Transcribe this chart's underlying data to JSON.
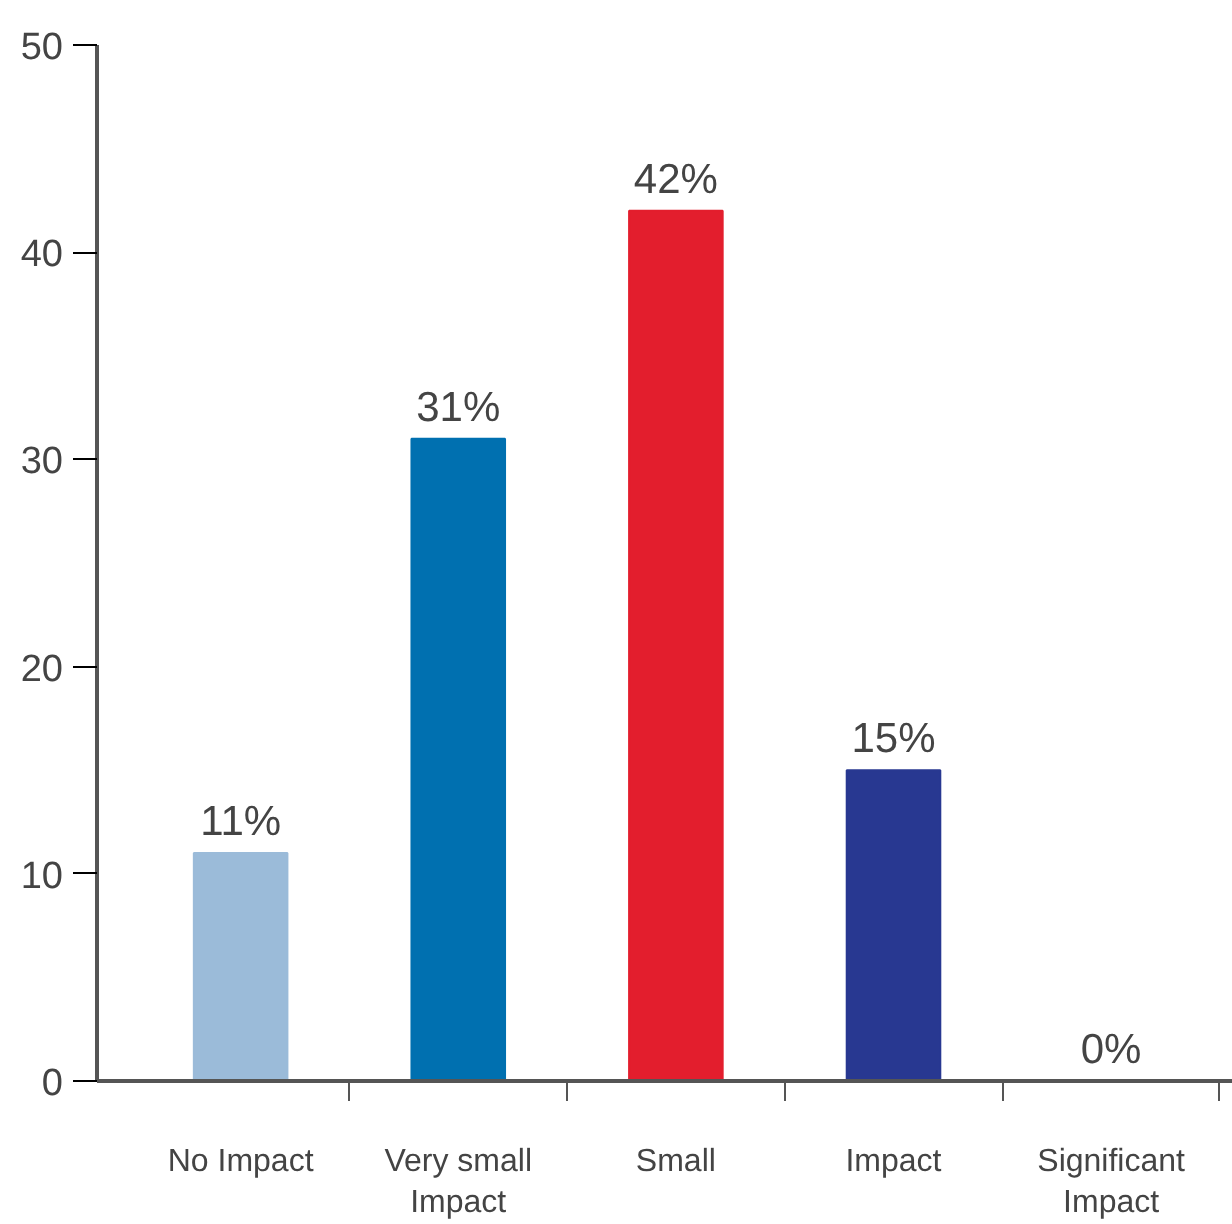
{
  "chart_data": {
    "type": "bar",
    "categories": [
      "No Impact",
      "Very small Impact",
      "Small",
      "Impact",
      "Significant Impact"
    ],
    "values": [
      11,
      31,
      42,
      15,
      0
    ],
    "colors": [
      "#9bbbd9",
      "#0070b0",
      "#e31e2d",
      "#283891",
      "#283891"
    ],
    "value_labels": [
      "11%",
      "31%",
      "42%",
      "15%",
      "0%"
    ],
    "ylim": [
      0,
      50
    ],
    "yticks": [
      0,
      10,
      20,
      30,
      40,
      50
    ],
    "grid": false
  }
}
